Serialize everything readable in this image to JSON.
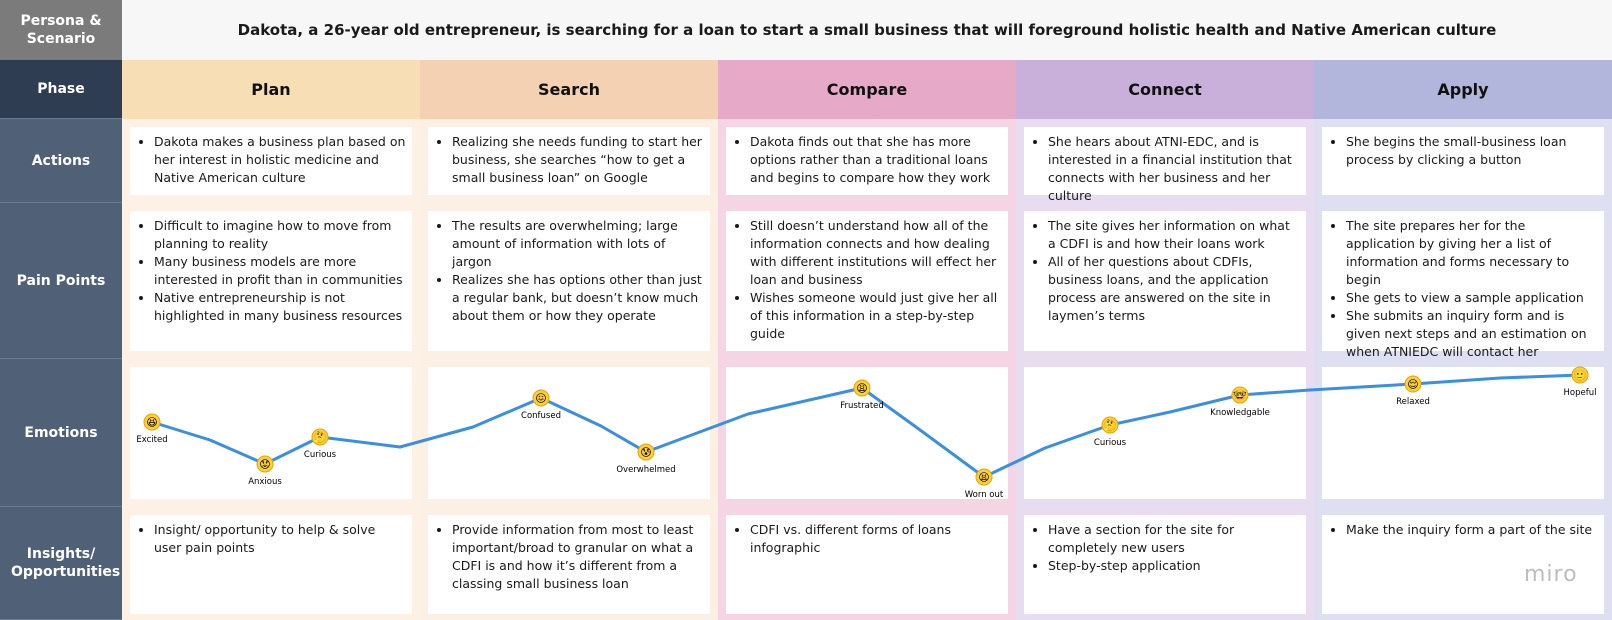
{
  "persona_label": "Persona & Scenario",
  "scenario_text": "Dakota, a 26-year old entrepreneur, is searching for a loan to start a small business that will foreground holistic health and Native American culture",
  "row_labels": {
    "phase": "Phase",
    "actions": "Actions",
    "pain_points": "Pain Points",
    "emotions": "Emotions",
    "insights": "Insights/ Opportunities"
  },
  "phases": [
    {
      "name": "Plan",
      "header_color": "#f8deb5",
      "bg_color": "#fdf1e6",
      "actions": [
        "Dakota makes a business plan based on her interest in holistic medicine and Native American culture"
      ],
      "pain_points": [
        "Difficult to imagine how to move from planning to reality",
        "Many business models are more interested in profit than in communities",
        "Native entrepreneurship is not highlighted in many business resources"
      ],
      "insights": [
        "Insight/ opportunity to help & solve user pain points"
      ]
    },
    {
      "name": "Search",
      "header_color": "#f5d1b3",
      "bg_color": "#fcefe3",
      "actions": [
        "Realizing she needs funding to start her business, she searches “how to get a small business loan” on Google"
      ],
      "pain_points": [
        "The results are overwhelming; large amount of information with lots of jargon",
        "Realizes she has options other than just a regular bank, but doesn’t know much about them or how they operate"
      ],
      "insights": [
        "Provide information from most to least important/broad to granular on what a CDFI is and how it’s different from a classing small business loan"
      ]
    },
    {
      "name": "Compare",
      "header_color": "#e6a9c8",
      "bg_color": "#f5d4e4",
      "actions": [
        "Dakota finds out that she has more options rather than a traditional loans and begins to compare how they work"
      ],
      "pain_points": [
        "Still doesn’t understand how all of the information connects and how dealing with different institutions will effect her loan and business",
        "Wishes someone would just give her all of this information in a step-by-step guide"
      ],
      "insights": [
        "CDFI vs. different forms of loans infographic"
      ]
    },
    {
      "name": "Connect",
      "header_color": "#c9b0da",
      "bg_color": "#e8dcf0",
      "actions": [
        "She hears about ATNI-EDC, and is interested in a financial institution that connects with her business and her culture"
      ],
      "pain_points": [
        "The site gives her information on what a CDFI is and how their loans work",
        "All of her questions about CDFIs, business loans, and the application process are answered on the site in laymen’s terms"
      ],
      "insights": [
        "Have a section for the site for completely new users",
        "Step-by-step application"
      ]
    },
    {
      "name": "Apply",
      "header_color": "#b2b5dc",
      "bg_color": "#dedff0",
      "actions": [
        "She begins the small-business loan process by clicking a button"
      ],
      "pain_points": [
        "The site prepares her for the application by giving her a list of information and forms necessary to begin",
        "She gets to view a sample application",
        "She submits an inquiry form and is given next steps and an estimation on when ATNIEDC will contact her"
      ],
      "insights": [
        "Make the inquiry form a part of the site"
      ]
    }
  ],
  "emotions": [
    {
      "label": "Excited",
      "emoji": "😆"
    },
    {
      "label": "Anxious",
      "emoji": "😟"
    },
    {
      "label": "Curious",
      "emoji": "🤔"
    },
    {
      "label": "Confused",
      "emoji": "😖"
    },
    {
      "label": "Overwhelmed",
      "emoji": "😰"
    },
    {
      "label": "Frustrated",
      "emoji": "😩"
    },
    {
      "label": "Worn out",
      "emoji": "😫"
    },
    {
      "label": "Curious",
      "emoji": "🤔"
    },
    {
      "label": "Knowledgable",
      "emoji": "🤓"
    },
    {
      "label": "Relaxed",
      "emoji": "😌"
    },
    {
      "label": "Hopeful",
      "emoji": "🙂"
    }
  ],
  "line_color": "#3a8fe0",
  "logo_text": "miro"
}
